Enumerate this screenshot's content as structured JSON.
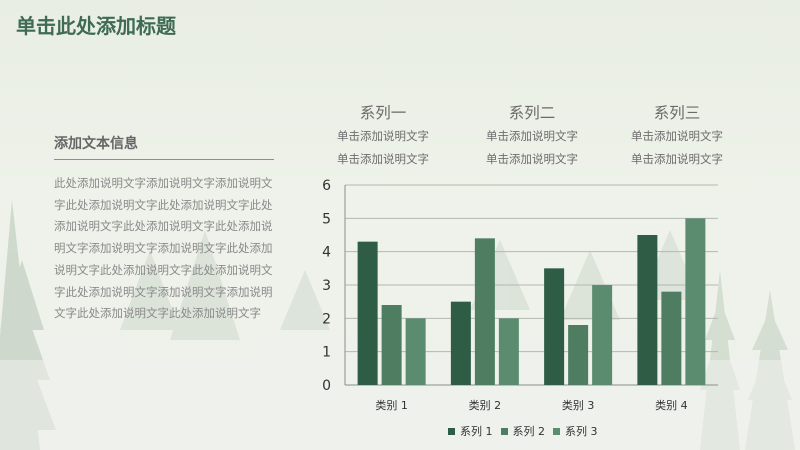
{
  "slide": {
    "title": "单击此处添加标题"
  },
  "side_panel": {
    "heading": "添加文本信息",
    "body": "此处添加说明文字添加说明文字添加说明文字此处添加说明文字此处添加说明文字此处添加说明文字此处添加说明文字此处添加说明文字添加说明文字添加说明文字此处添加说明文字此处添加说明文字此处添加说明文字此处添加说明文字添加说明文字添加说明文字此处添加说明文字此处添加说明文字"
  },
  "series_captions": [
    {
      "name": "系列一",
      "line1": "单击添加说明文字",
      "line2": "单击添加说明文字"
    },
    {
      "name": "系列二",
      "line1": "单击添加说明文字",
      "line2": "单击添加说明文字"
    },
    {
      "name": "系列三",
      "line1": "单击添加说明文字",
      "line2": "单击添加说明文字"
    }
  ],
  "chart_data": {
    "type": "bar",
    "categories": [
      "类别 1",
      "类别 2",
      "类别 3",
      "类别 4"
    ],
    "series": [
      {
        "name": "系列 1",
        "values": [
          4.3,
          2.5,
          3.5,
          4.5
        ],
        "color": "#2f5c45"
      },
      {
        "name": "系列 2",
        "values": [
          2.4,
          4.4,
          1.8,
          2.8
        ],
        "color": "#4f7d62"
      },
      {
        "name": "系列 3",
        "values": [
          2.0,
          2.0,
          3.0,
          5.0
        ],
        "color": "#5c8c70"
      }
    ],
    "ylim": [
      0,
      6
    ],
    "yticks": [
      "0",
      "1",
      "2",
      "3",
      "4",
      "5",
      "6"
    ],
    "grid": true,
    "legend": "bottom",
    "title": "",
    "xlabel": "",
    "ylabel": ""
  }
}
